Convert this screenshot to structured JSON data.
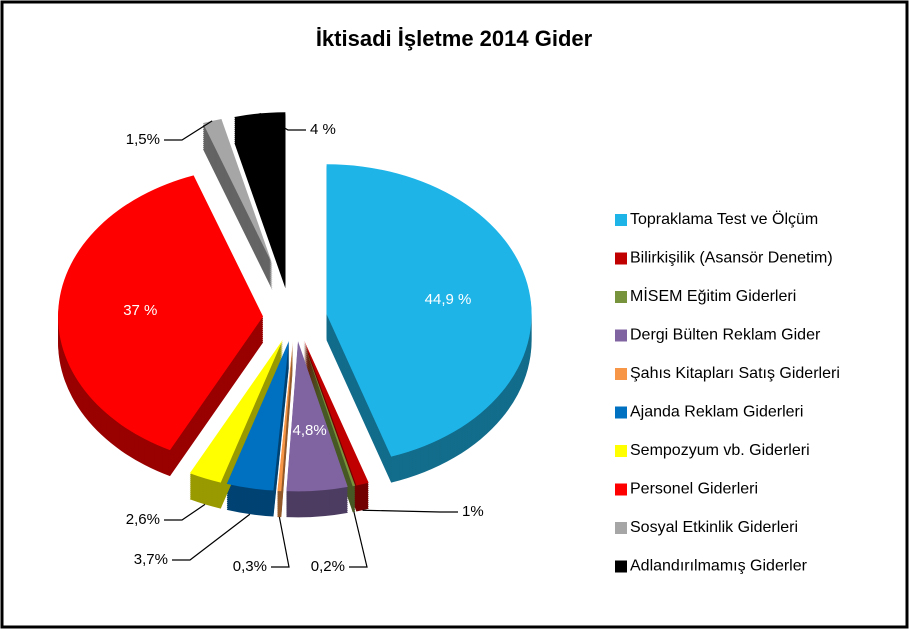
{
  "chart_data": {
    "type": "pie",
    "title": "İktisadi İşletme 2014 Gider",
    "categories": [
      "Topraklama Test ve Ölçüm",
      "Bilirkişilik (Asansör Denetim)",
      "MİSEM Eğitim Giderleri",
      "Dergi Bülten Reklam Gider",
      "Şahıs Kitapları Satış Giderleri",
      "Ajanda Reklam Giderleri",
      "Sempozyum vb. Giderleri",
      "Personel Giderleri",
      "Sosyal Etkinlik Giderleri",
      "Adlandırılmamış Giderler"
    ],
    "values": [
      44.9,
      1,
      0.2,
      4.8,
      0.3,
      3.7,
      2.6,
      37,
      1.5,
      4
    ],
    "value_labels": [
      "44,9 %",
      "1%",
      "0,2%",
      "4,8%",
      "0,3%",
      "3,7%",
      "2,6%",
      "37 %",
      "1,5%",
      "4 %"
    ],
    "colors": [
      "#1eb4e8",
      "#c00000",
      "#77933c",
      "#8064a2",
      "#f79646",
      "#0070c0",
      "#ffff00",
      "#ff0000",
      "#a6a6a6",
      "#000000"
    ],
    "legend": "right"
  }
}
